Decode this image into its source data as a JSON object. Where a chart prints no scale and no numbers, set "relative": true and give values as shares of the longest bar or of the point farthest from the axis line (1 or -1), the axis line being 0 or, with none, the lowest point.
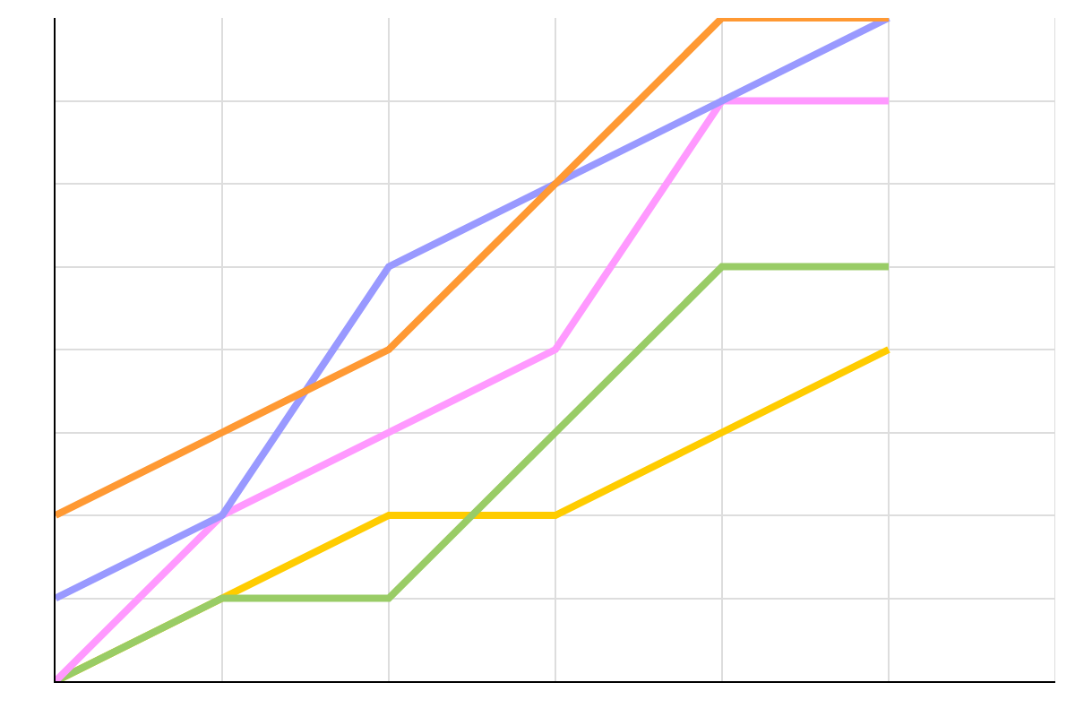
{
  "chart_data": {
    "type": "line",
    "relative": true,
    "grid": true,
    "categories": [
      null,
      null,
      null,
      null,
      null,
      null
    ],
    "series": [
      {
        "color": "#ffcc00",
        "values": [
          0,
          0.125,
          0.25,
          0.25,
          0.375,
          0.5
        ]
      },
      {
        "color": "#99cc66",
        "values": [
          0,
          0.125,
          0.125,
          0.375,
          0.625,
          0.625
        ]
      },
      {
        "color": "#ff99ff",
        "values": [
          0,
          0.25,
          0.375,
          0.5,
          0.875,
          0.875
        ]
      },
      {
        "color": "#9999ff",
        "values": [
          0.125,
          0.25,
          0.625,
          0.75,
          0.875,
          1
        ]
      },
      {
        "color": "#ff9933",
        "values": [
          0.25,
          0.375,
          0.5,
          0.75,
          1,
          1
        ]
      }
    ]
  }
}
